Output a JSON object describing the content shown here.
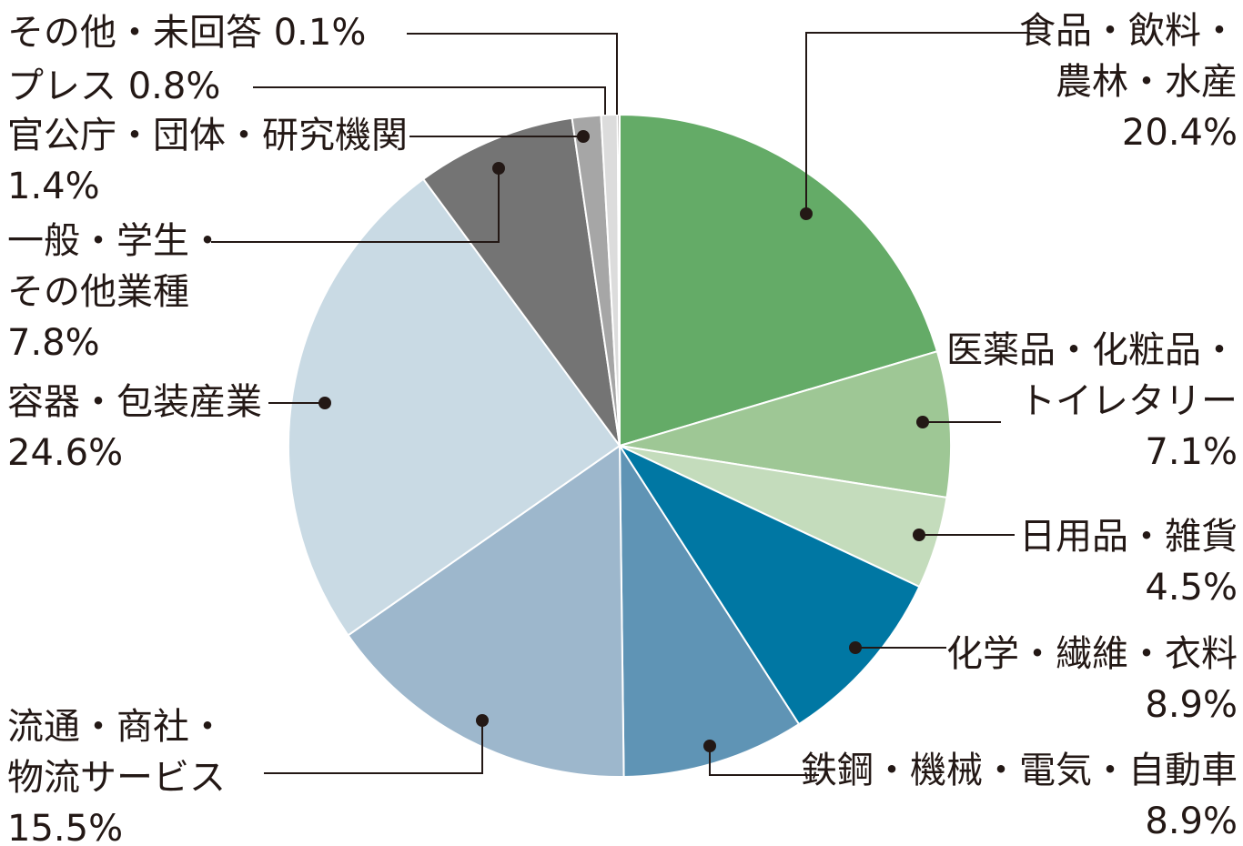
{
  "chart_data": {
    "type": "pie",
    "slices": [
      {
        "label": "食品・飲料・農林・水産",
        "lines": [
          "食品・飲料・",
          "農林・水産"
        ],
        "value_text": "20.4%",
        "value": 20.4,
        "color": "#64ab67"
      },
      {
        "label": "医薬品・化粧品・トイレタリー",
        "lines": [
          "医薬品・化粧品・",
          "トイレタリー"
        ],
        "value_text": "7.1%",
        "value": 7.1,
        "color": "#9ec795"
      },
      {
        "label": "日用品・雑貨",
        "lines": [
          "日用品・雑貨"
        ],
        "value_text": "4.5%",
        "value": 4.5,
        "color": "#c4dcbc"
      },
      {
        "label": "化学・繊維・衣料",
        "lines": [
          "化学・繊維・衣料"
        ],
        "value_text": "8.9%",
        "value": 8.9,
        "color": "#0077a3"
      },
      {
        "label": "鉄鋼・機械・電気・自動車",
        "lines": [
          "鉄鋼・機械・電気・自動車"
        ],
        "value_text": "8.9%",
        "value": 8.9,
        "color": "#5f94b5"
      },
      {
        "label": "流通・商社・物流サービス",
        "lines": [
          "流通・商社・",
          "物流サービス"
        ],
        "value_text": "15.5%",
        "value": 15.5,
        "color": "#9db7cc"
      },
      {
        "label": "容器・包装産業",
        "lines": [
          "容器・包装産業"
        ],
        "value_text": "24.6%",
        "value": 24.6,
        "color": "#c9dae4"
      },
      {
        "label": "一般・学生・その他業種",
        "lines": [
          "一般・学生・",
          "その他業種"
        ],
        "value_text": "7.8%",
        "value": 7.8,
        "color": "#747474"
      },
      {
        "label": "官公庁・団体・研究機関",
        "lines": [
          "官公庁・団体・研究機関"
        ],
        "value_text": "1.4%",
        "value": 1.4,
        "color": "#a6a6a6"
      },
      {
        "label": "プレス",
        "lines": [
          "プレス"
        ],
        "value_text": "0.8%",
        "value": 0.8,
        "color": "#dcdcdc"
      },
      {
        "label": "その他・未回答",
        "lines": [
          "その他・未回答"
        ],
        "value_text": "0.1%",
        "value": 0.1,
        "color": "#231815"
      }
    ],
    "start": "12 o'clock",
    "direction": "clockwise",
    "legend": "none (callout labels)"
  }
}
